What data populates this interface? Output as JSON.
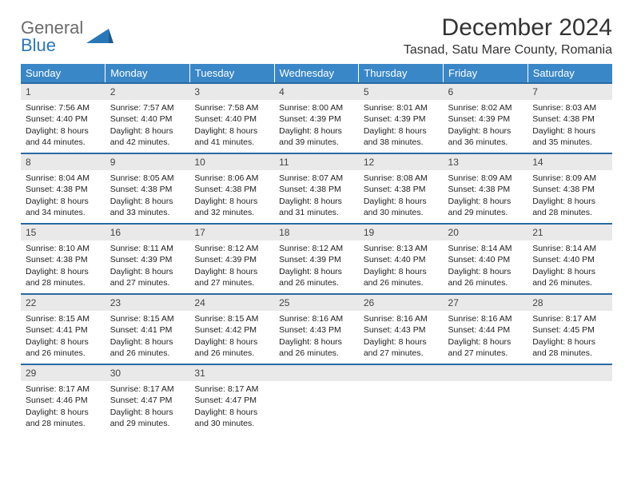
{
  "logo": {
    "top": "General",
    "bottom": "Blue"
  },
  "title": "December 2024",
  "location": "Tasnad, Satu Mare County, Romania",
  "colors": {
    "header_bg": "#3a87c7",
    "rule": "#2a6aa1",
    "day_num_bg": "#e9e9e9",
    "logo_gray": "#6b6b6b",
    "logo_blue": "#2a77b8"
  },
  "weekdays": [
    "Sunday",
    "Monday",
    "Tuesday",
    "Wednesday",
    "Thursday",
    "Friday",
    "Saturday"
  ],
  "weeks": [
    [
      {
        "n": "1",
        "sr": "7:56 AM",
        "ss": "4:40 PM",
        "dl": "8 hours and 44 minutes."
      },
      {
        "n": "2",
        "sr": "7:57 AM",
        "ss": "4:40 PM",
        "dl": "8 hours and 42 minutes."
      },
      {
        "n": "3",
        "sr": "7:58 AM",
        "ss": "4:40 PM",
        "dl": "8 hours and 41 minutes."
      },
      {
        "n": "4",
        "sr": "8:00 AM",
        "ss": "4:39 PM",
        "dl": "8 hours and 39 minutes."
      },
      {
        "n": "5",
        "sr": "8:01 AM",
        "ss": "4:39 PM",
        "dl": "8 hours and 38 minutes."
      },
      {
        "n": "6",
        "sr": "8:02 AM",
        "ss": "4:39 PM",
        "dl": "8 hours and 36 minutes."
      },
      {
        "n": "7",
        "sr": "8:03 AM",
        "ss": "4:38 PM",
        "dl": "8 hours and 35 minutes."
      }
    ],
    [
      {
        "n": "8",
        "sr": "8:04 AM",
        "ss": "4:38 PM",
        "dl": "8 hours and 34 minutes."
      },
      {
        "n": "9",
        "sr": "8:05 AM",
        "ss": "4:38 PM",
        "dl": "8 hours and 33 minutes."
      },
      {
        "n": "10",
        "sr": "8:06 AM",
        "ss": "4:38 PM",
        "dl": "8 hours and 32 minutes."
      },
      {
        "n": "11",
        "sr": "8:07 AM",
        "ss": "4:38 PM",
        "dl": "8 hours and 31 minutes."
      },
      {
        "n": "12",
        "sr": "8:08 AM",
        "ss": "4:38 PM",
        "dl": "8 hours and 30 minutes."
      },
      {
        "n": "13",
        "sr": "8:09 AM",
        "ss": "4:38 PM",
        "dl": "8 hours and 29 minutes."
      },
      {
        "n": "14",
        "sr": "8:09 AM",
        "ss": "4:38 PM",
        "dl": "8 hours and 28 minutes."
      }
    ],
    [
      {
        "n": "15",
        "sr": "8:10 AM",
        "ss": "4:38 PM",
        "dl": "8 hours and 28 minutes."
      },
      {
        "n": "16",
        "sr": "8:11 AM",
        "ss": "4:39 PM",
        "dl": "8 hours and 27 minutes."
      },
      {
        "n": "17",
        "sr": "8:12 AM",
        "ss": "4:39 PM",
        "dl": "8 hours and 27 minutes."
      },
      {
        "n": "18",
        "sr": "8:12 AM",
        "ss": "4:39 PM",
        "dl": "8 hours and 26 minutes."
      },
      {
        "n": "19",
        "sr": "8:13 AM",
        "ss": "4:40 PM",
        "dl": "8 hours and 26 minutes."
      },
      {
        "n": "20",
        "sr": "8:14 AM",
        "ss": "4:40 PM",
        "dl": "8 hours and 26 minutes."
      },
      {
        "n": "21",
        "sr": "8:14 AM",
        "ss": "4:40 PM",
        "dl": "8 hours and 26 minutes."
      }
    ],
    [
      {
        "n": "22",
        "sr": "8:15 AM",
        "ss": "4:41 PM",
        "dl": "8 hours and 26 minutes."
      },
      {
        "n": "23",
        "sr": "8:15 AM",
        "ss": "4:41 PM",
        "dl": "8 hours and 26 minutes."
      },
      {
        "n": "24",
        "sr": "8:15 AM",
        "ss": "4:42 PM",
        "dl": "8 hours and 26 minutes."
      },
      {
        "n": "25",
        "sr": "8:16 AM",
        "ss": "4:43 PM",
        "dl": "8 hours and 26 minutes."
      },
      {
        "n": "26",
        "sr": "8:16 AM",
        "ss": "4:43 PM",
        "dl": "8 hours and 27 minutes."
      },
      {
        "n": "27",
        "sr": "8:16 AM",
        "ss": "4:44 PM",
        "dl": "8 hours and 27 minutes."
      },
      {
        "n": "28",
        "sr": "8:17 AM",
        "ss": "4:45 PM",
        "dl": "8 hours and 28 minutes."
      }
    ],
    [
      {
        "n": "29",
        "sr": "8:17 AM",
        "ss": "4:46 PM",
        "dl": "8 hours and 28 minutes."
      },
      {
        "n": "30",
        "sr": "8:17 AM",
        "ss": "4:47 PM",
        "dl": "8 hours and 29 minutes."
      },
      {
        "n": "31",
        "sr": "8:17 AM",
        "ss": "4:47 PM",
        "dl": "8 hours and 30 minutes."
      },
      {
        "empty": true
      },
      {
        "empty": true
      },
      {
        "empty": true
      },
      {
        "empty": true
      }
    ]
  ],
  "labels": {
    "sunrise": "Sunrise:",
    "sunset": "Sunset:",
    "daylight": "Daylight:"
  }
}
